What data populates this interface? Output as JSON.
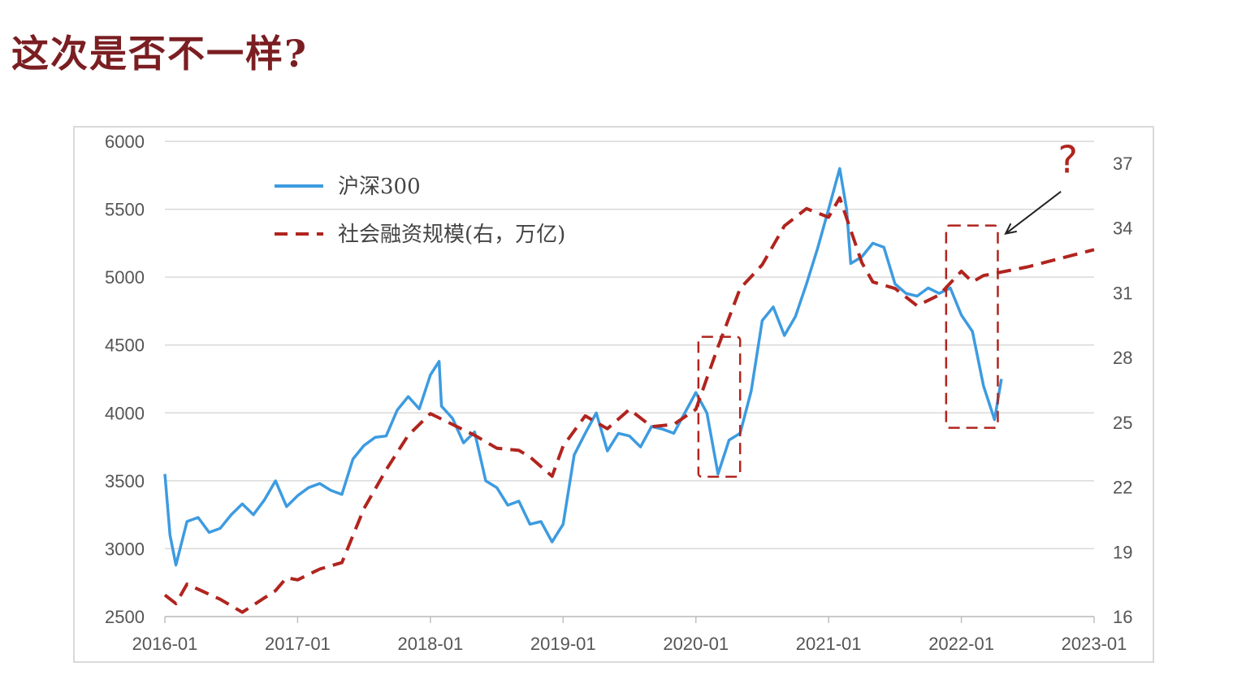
{
  "title": "这次是否不一样?",
  "chart_data": {
    "type": "line",
    "x_ticks": [
      "2016-01",
      "2017-01",
      "2018-01",
      "2019-01",
      "2020-01",
      "2021-01",
      "2022-01",
      "2023-01"
    ],
    "xlim": [
      "2016-01",
      "2023-01"
    ],
    "y_left": {
      "ticks": [
        "6000",
        "5500",
        "5000",
        "4500",
        "4000",
        "3500",
        "3000",
        "2500"
      ],
      "range": [
        2500,
        6000
      ]
    },
    "y_right": {
      "ticks": [
        "37",
        "34",
        "31",
        "28",
        "25",
        "22",
        "19",
        "16"
      ],
      "range": [
        16,
        38
      ]
    },
    "grid": "horizontal",
    "legend_position": "top-left",
    "series": [
      {
        "name": "沪深300",
        "axis": "left",
        "color": "#3d9be0",
        "style": "solid",
        "points": [
          [
            "2016-01",
            3550
          ],
          [
            "2016-01-15",
            3100
          ],
          [
            "2016-02",
            2880
          ],
          [
            "2016-03",
            3200
          ],
          [
            "2016-04",
            3230
          ],
          [
            "2016-05",
            3120
          ],
          [
            "2016-06",
            3150
          ],
          [
            "2016-07",
            3250
          ],
          [
            "2016-08",
            3330
          ],
          [
            "2016-09",
            3250
          ],
          [
            "2016-10",
            3360
          ],
          [
            "2016-11",
            3500
          ],
          [
            "2016-12",
            3310
          ],
          [
            "2017-01",
            3390
          ],
          [
            "2017-02",
            3450
          ],
          [
            "2017-03",
            3480
          ],
          [
            "2017-04",
            3430
          ],
          [
            "2017-05",
            3400
          ],
          [
            "2017-06",
            3660
          ],
          [
            "2017-07",
            3760
          ],
          [
            "2017-08",
            3820
          ],
          [
            "2017-09",
            3830
          ],
          [
            "2017-10",
            4020
          ],
          [
            "2017-11",
            4120
          ],
          [
            "2017-12",
            4030
          ],
          [
            "2018-01",
            4280
          ],
          [
            "2018-01-25",
            4380
          ],
          [
            "2018-02",
            4050
          ],
          [
            "2018-03",
            3960
          ],
          [
            "2018-04",
            3780
          ],
          [
            "2018-05",
            3860
          ],
          [
            "2018-06",
            3500
          ],
          [
            "2018-07",
            3450
          ],
          [
            "2018-08",
            3320
          ],
          [
            "2018-09",
            3350
          ],
          [
            "2018-10",
            3180
          ],
          [
            "2018-11",
            3200
          ],
          [
            "2018-12",
            3050
          ],
          [
            "2019-01",
            3180
          ],
          [
            "2019-02",
            3690
          ],
          [
            "2019-03",
            3850
          ],
          [
            "2019-04",
            4000
          ],
          [
            "2019-05",
            3720
          ],
          [
            "2019-06",
            3850
          ],
          [
            "2019-07",
            3830
          ],
          [
            "2019-08",
            3750
          ],
          [
            "2019-09",
            3900
          ],
          [
            "2019-10",
            3880
          ],
          [
            "2019-11",
            3850
          ],
          [
            "2019-12",
            4000
          ],
          [
            "2020-01",
            4150
          ],
          [
            "2020-02",
            4000
          ],
          [
            "2020-03",
            3550
          ],
          [
            "2020-04",
            3800
          ],
          [
            "2020-05",
            3850
          ],
          [
            "2020-06",
            4160
          ],
          [
            "2020-07",
            4680
          ],
          [
            "2020-08",
            4780
          ],
          [
            "2020-09",
            4570
          ],
          [
            "2020-10",
            4710
          ],
          [
            "2020-11",
            4950
          ],
          [
            "2020-12",
            5210
          ],
          [
            "2021-01",
            5500
          ],
          [
            "2021-02",
            5800
          ],
          [
            "2021-02-20",
            5500
          ],
          [
            "2021-03",
            5100
          ],
          [
            "2021-04",
            5150
          ],
          [
            "2021-05",
            5250
          ],
          [
            "2021-06",
            5220
          ],
          [
            "2021-07",
            4950
          ],
          [
            "2021-08",
            4880
          ],
          [
            "2021-09",
            4860
          ],
          [
            "2021-10",
            4920
          ],
          [
            "2021-11",
            4880
          ],
          [
            "2021-12",
            4920
          ],
          [
            "2022-01",
            4720
          ],
          [
            "2022-02",
            4600
          ],
          [
            "2022-03",
            4200
          ],
          [
            "2022-04",
            3950
          ],
          [
            "2022-04-20",
            4250
          ]
        ]
      },
      {
        "name": "社会融资规模(右，万亿)",
        "axis": "right",
        "color": "#b1241e",
        "style": "dashed",
        "points": [
          [
            "2016-01",
            17.0
          ],
          [
            "2016-02",
            16.6
          ],
          [
            "2016-03",
            17.5
          ],
          [
            "2016-06",
            16.8
          ],
          [
            "2016-08",
            16.2
          ],
          [
            "2016-11",
            17.2
          ],
          [
            "2016-12",
            17.8
          ],
          [
            "2017-01",
            17.7
          ],
          [
            "2017-03",
            18.2
          ],
          [
            "2017-05",
            18.5
          ],
          [
            "2017-07",
            21.0
          ],
          [
            "2017-09",
            22.8
          ],
          [
            "2017-11",
            24.4
          ],
          [
            "2018-01",
            25.4
          ],
          [
            "2018-03",
            24.9
          ],
          [
            "2018-05",
            24.4
          ],
          [
            "2018-07",
            23.8
          ],
          [
            "2018-09",
            23.7
          ],
          [
            "2018-10",
            23.4
          ],
          [
            "2018-12",
            22.5
          ],
          [
            "2019-01",
            23.9
          ],
          [
            "2019-03",
            25.3
          ],
          [
            "2019-05",
            24.7
          ],
          [
            "2019-07",
            25.6
          ],
          [
            "2019-09",
            24.8
          ],
          [
            "2019-11",
            24.9
          ],
          [
            "2020-01",
            25.6
          ],
          [
            "2020-03",
            28.5
          ],
          [
            "2020-05",
            31.2
          ],
          [
            "2020-07",
            32.3
          ],
          [
            "2020-09",
            34.1
          ],
          [
            "2020-11",
            34.9
          ],
          [
            "2021-01",
            34.5
          ],
          [
            "2021-02",
            35.4
          ],
          [
            "2021-04",
            32.4
          ],
          [
            "2021-05",
            31.5
          ],
          [
            "2021-07",
            31.2
          ],
          [
            "2021-09",
            30.4
          ],
          [
            "2021-11",
            30.9
          ],
          [
            "2022-01",
            32.0
          ],
          [
            "2022-02",
            31.5
          ],
          [
            "2022-03",
            31.8
          ],
          [
            "2022-05",
            32.0
          ],
          [
            "2022-07",
            32.2
          ],
          [
            "2022-10",
            32.6
          ],
          [
            "2023-01",
            33.0
          ]
        ]
      }
    ],
    "annotations": [
      {
        "type": "dashed-box",
        "from": [
          "2020-01-08",
          3530
        ],
        "to": [
          "2020-05",
          4560
        ]
      },
      {
        "type": "dashed-box",
        "from": [
          "2021-11-20",
          3890
        ],
        "to": [
          "2022-04-10",
          5380
        ]
      },
      {
        "type": "text",
        "text": "?",
        "at": [
          "2022-10-20",
          5770
        ]
      },
      {
        "type": "arrow",
        "from": [
          "2022-10",
          5630
        ],
        "to": [
          "2022-05",
          5320
        ]
      }
    ]
  }
}
